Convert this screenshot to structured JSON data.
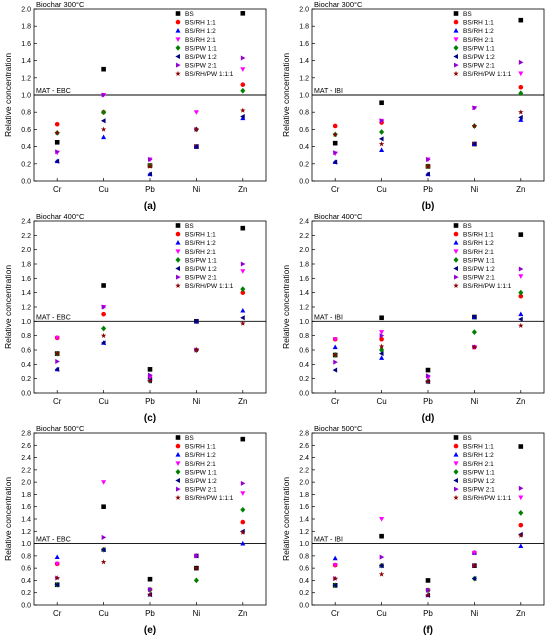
{
  "series_legend": [
    {
      "name": "BS",
      "marker": "square",
      "color": "#000000"
    },
    {
      "name": "BS/RH 1:1",
      "marker": "circle",
      "color": "#ff0000"
    },
    {
      "name": "BS/RH 1:2",
      "marker": "triangle-up",
      "color": "#0000ff"
    },
    {
      "name": "BS/RH 2:1",
      "marker": "triangle-down",
      "color": "#ff00ff"
    },
    {
      "name": "BS/PW 1:1",
      "marker": "diamond",
      "color": "#008000"
    },
    {
      "name": "BS/PW 1:2",
      "marker": "triangle-left",
      "color": "#000080"
    },
    {
      "name": "BS/PW 2:1",
      "marker": "triangle-right",
      "color": "#9400d3"
    },
    {
      "name": "BS/RH/PW 1:1:1",
      "marker": "star",
      "color": "#8b0000"
    }
  ],
  "chart_data": [
    {
      "type": "scatter",
      "title": "Biochar 300°C",
      "panel_label": "(a)",
      "reference_label": "MAT - EBC",
      "reference_line": 1.0,
      "categories": [
        "Cr",
        "Cu",
        "Pb",
        "Ni",
        "Zn"
      ],
      "ylabel": "Relative concentration",
      "ylim": [
        0.0,
        2.0
      ],
      "yticks": [
        0.0,
        0.2,
        0.4,
        0.6,
        0.8,
        1.0,
        1.2,
        1.4,
        1.6,
        1.8,
        2.0
      ],
      "series": [
        {
          "name": "BS",
          "values": [
            0.45,
            1.3,
            0.18,
            0.4,
            1.95
          ]
        },
        {
          "name": "BS/RH 1:1",
          "values": [
            0.66,
            0.8,
            0.18,
            0.4,
            1.12
          ]
        },
        {
          "name": "BS/RH 1:2",
          "values": [
            0.23,
            0.51,
            0.08,
            0.4,
            0.73
          ]
        },
        {
          "name": "BS/RH 2:1",
          "values": [
            0.33,
            1.0,
            0.25,
            0.8,
            1.3
          ]
        },
        {
          "name": "BS/PW 1:1",
          "values": [
            0.56,
            0.8,
            0.18,
            0.6,
            1.05
          ]
        },
        {
          "name": "BS/PW 1:2",
          "values": [
            0.23,
            0.7,
            0.08,
            0.4,
            0.75
          ]
        },
        {
          "name": "BS/PW 2:1",
          "values": [
            0.34,
            1.0,
            0.25,
            0.6,
            1.43
          ]
        },
        {
          "name": "BS/RH/PW 1:1:1",
          "values": [
            0.56,
            0.6,
            0.17,
            0.6,
            0.82
          ]
        }
      ]
    },
    {
      "type": "scatter",
      "title": "Biochar 300°C",
      "panel_label": "(b)",
      "reference_label": "MAT - IBI",
      "reference_line": 1.0,
      "categories": [
        "Cr",
        "Cu",
        "Pb",
        "Ni",
        "Zn"
      ],
      "ylabel": "Relative concentration",
      "ylim": [
        0.0,
        2.0
      ],
      "yticks": [
        0.0,
        0.2,
        0.4,
        0.6,
        0.8,
        1.0,
        1.2,
        1.4,
        1.6,
        1.8,
        2.0
      ],
      "series": [
        {
          "name": "BS",
          "values": [
            0.44,
            0.91,
            0.17,
            0.43,
            1.87
          ]
        },
        {
          "name": "BS/RH 1:1",
          "values": [
            0.64,
            0.68,
            0.17,
            0.43,
            1.09
          ]
        },
        {
          "name": "BS/RH 1:2",
          "values": [
            0.22,
            0.36,
            0.08,
            0.43,
            0.71
          ]
        },
        {
          "name": "BS/RH 2:1",
          "values": [
            0.32,
            0.7,
            0.25,
            0.85,
            1.25
          ]
        },
        {
          "name": "BS/PW 1:1",
          "values": [
            0.54,
            0.57,
            0.17,
            0.64,
            1.02
          ]
        },
        {
          "name": "BS/PW 1:2",
          "values": [
            0.22,
            0.49,
            0.08,
            0.43,
            0.74
          ]
        },
        {
          "name": "BS/PW 2:1",
          "values": [
            0.33,
            0.7,
            0.25,
            0.85,
            1.38
          ]
        },
        {
          "name": "BS/RH/PW 1:1:1",
          "values": [
            0.54,
            0.43,
            0.17,
            0.64,
            0.8
          ]
        }
      ]
    },
    {
      "type": "scatter",
      "title": "Biochar 400°C",
      "panel_label": "(c)",
      "reference_label": "MAT - EBC",
      "reference_line": 1.0,
      "categories": [
        "Cr",
        "Cu",
        "Pb",
        "Ni",
        "Zn"
      ],
      "ylabel": "Relative concentration",
      "ylim": [
        0.0,
        2.4
      ],
      "yticks": [
        0.0,
        0.2,
        0.4,
        0.6,
        0.8,
        1.0,
        1.2,
        1.4,
        1.6,
        1.8,
        2.0,
        2.2,
        2.4
      ],
      "series": [
        {
          "name": "BS",
          "values": [
            0.55,
            1.5,
            0.33,
            1.0,
            2.3
          ]
        },
        {
          "name": "BS/RH 1:1",
          "values": [
            0.77,
            1.1,
            0.22,
            0.6,
            1.4
          ]
        },
        {
          "name": "BS/RH 1:2",
          "values": [
            0.33,
            0.7,
            0.22,
            1.0,
            1.15
          ]
        },
        {
          "name": "BS/RH 2:1",
          "values": [
            0.77,
            1.2,
            0.22,
            0.6,
            1.7
          ]
        },
        {
          "name": "BS/PW 1:1",
          "values": [
            0.55,
            0.9,
            0.17,
            0.6,
            1.45
          ]
        },
        {
          "name": "BS/PW 1:2",
          "values": [
            0.33,
            0.7,
            0.17,
            1.0,
            1.05
          ]
        },
        {
          "name": "BS/PW 2:1",
          "values": [
            0.44,
            1.2,
            0.25,
            0.6,
            1.8
          ]
        },
        {
          "name": "BS/RH/PW 1:1:1",
          "values": [
            0.55,
            0.8,
            0.17,
            0.6,
            0.97
          ]
        }
      ]
    },
    {
      "type": "scatter",
      "title": "Biochar 400°C",
      "panel_label": "(d)",
      "reference_label": "MAT - IBI",
      "reference_line": 1.0,
      "categories": [
        "Cr",
        "Cu",
        "Pb",
        "Ni",
        "Zn"
      ],
      "ylabel": "Relative concentration",
      "ylim": [
        0.0,
        2.4
      ],
      "yticks": [
        0.0,
        0.2,
        0.4,
        0.6,
        0.8,
        1.0,
        1.2,
        1.4,
        1.6,
        1.8,
        2.0,
        2.2,
        2.4
      ],
      "series": [
        {
          "name": "BS",
          "values": [
            0.53,
            1.05,
            0.32,
            1.06,
            2.21
          ]
        },
        {
          "name": "BS/RH 1:1",
          "values": [
            0.75,
            0.75,
            0.16,
            0.64,
            1.35
          ]
        },
        {
          "name": "BS/RH 1:2",
          "values": [
            0.64,
            0.49,
            0.16,
            1.06,
            1.1
          ]
        },
        {
          "name": "BS/RH 2:1",
          "values": [
            0.75,
            0.85,
            0.21,
            0.64,
            1.63
          ]
        },
        {
          "name": "BS/PW 1:1",
          "values": [
            0.53,
            0.6,
            0.16,
            0.85,
            1.4
          ]
        },
        {
          "name": "BS/PW 1:2",
          "values": [
            0.32,
            0.55,
            0.16,
            1.06,
            1.03
          ]
        },
        {
          "name": "BS/PW 2:1",
          "values": [
            0.43,
            0.8,
            0.24,
            0.64,
            1.73
          ]
        },
        {
          "name": "BS/RH/PW 1:1:1",
          "values": [
            0.53,
            0.65,
            0.16,
            0.64,
            0.94
          ]
        }
      ]
    },
    {
      "type": "scatter",
      "title": "Biochar 500°C",
      "panel_label": "(e)",
      "reference_label": "MAT - EBC",
      "reference_line": 1.0,
      "categories": [
        "Cr",
        "Cu",
        "Pb",
        "Ni",
        "Zn"
      ],
      "ylabel": "Relative concentration",
      "ylim": [
        0.0,
        2.8
      ],
      "yticks": [
        0.0,
        0.2,
        0.4,
        0.6,
        0.8,
        1.0,
        1.2,
        1.4,
        1.6,
        1.8,
        2.0,
        2.2,
        2.4,
        2.6,
        2.8
      ],
      "series": [
        {
          "name": "BS",
          "values": [
            0.33,
            1.6,
            0.42,
            0.6,
            2.7
          ]
        },
        {
          "name": "BS/RH 1:1",
          "values": [
            0.67,
            0.9,
            0.25,
            0.8,
            1.35
          ]
        },
        {
          "name": "BS/RH 1:2",
          "values": [
            0.78,
            0.9,
            0.17,
            0.8,
            1.0
          ]
        },
        {
          "name": "BS/RH 2:1",
          "values": [
            0.67,
            2.0,
            0.25,
            0.8,
            1.82
          ]
        },
        {
          "name": "BS/PW 1:1",
          "values": [
            0.33,
            0.9,
            0.25,
            0.4,
            1.55
          ]
        },
        {
          "name": "BS/PW 1:2",
          "values": [
            0.33,
            0.9,
            0.17,
            0.8,
            1.2
          ]
        },
        {
          "name": "BS/PW 2:1",
          "values": [
            0.44,
            1.1,
            0.25,
            0.8,
            1.98
          ]
        },
        {
          "name": "BS/RH/PW 1:1:1",
          "values": [
            0.44,
            0.7,
            0.17,
            0.6,
            1.18
          ]
        }
      ]
    },
    {
      "type": "scatter",
      "title": "Biochar 500°C",
      "panel_label": "(f)",
      "reference_label": "MAT - IBI",
      "reference_line": 1.0,
      "categories": [
        "Cr",
        "Cu",
        "Pb",
        "Ni",
        "Zn"
      ],
      "ylabel": "Relative concentration",
      "ylim": [
        0.0,
        2.8
      ],
      "yticks": [
        0.0,
        0.2,
        0.4,
        0.6,
        0.8,
        1.0,
        1.2,
        1.4,
        1.6,
        1.8,
        2.0,
        2.2,
        2.4,
        2.6,
        2.8
      ],
      "series": [
        {
          "name": "BS",
          "values": [
            0.32,
            1.12,
            0.4,
            0.64,
            2.58
          ]
        },
        {
          "name": "BS/RH 1:1",
          "values": [
            0.65,
            0.64,
            0.24,
            0.85,
            1.3
          ]
        },
        {
          "name": "BS/RH 1:2",
          "values": [
            0.76,
            0.64,
            0.16,
            0.85,
            0.96
          ]
        },
        {
          "name": "BS/RH 2:1",
          "values": [
            0.65,
            1.4,
            0.24,
            0.85,
            1.75
          ]
        },
        {
          "name": "BS/PW 1:1",
          "values": [
            0.32,
            0.64,
            0.24,
            0.43,
            1.5
          ]
        },
        {
          "name": "BS/PW 1:2",
          "values": [
            0.32,
            0.64,
            0.16,
            0.43,
            1.15
          ]
        },
        {
          "name": "BS/PW 2:1",
          "values": [
            0.43,
            0.78,
            0.24,
            0.64,
            1.9
          ]
        },
        {
          "name": "BS/RH/PW 1:1:1",
          "values": [
            0.43,
            0.5,
            0.16,
            0.64,
            1.13
          ]
        }
      ]
    }
  ]
}
